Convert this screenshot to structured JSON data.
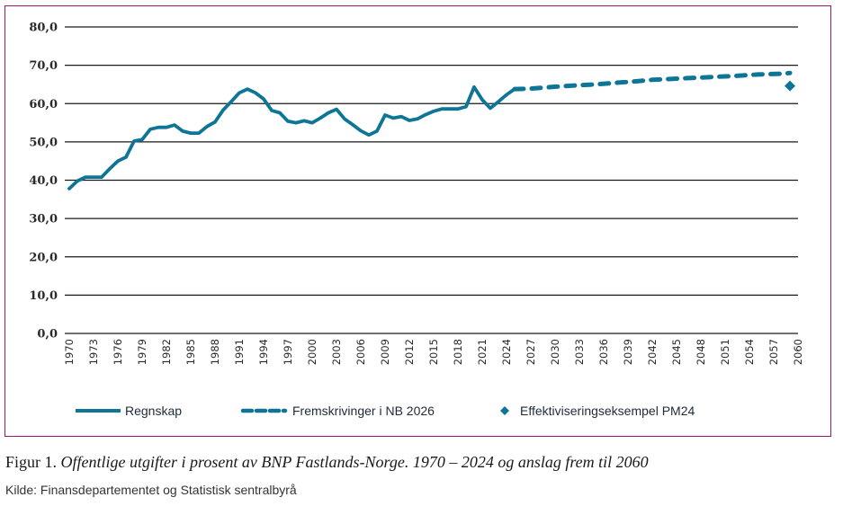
{
  "chart_data": {
    "type": "line",
    "title": "",
    "xlabel": "",
    "ylabel": "",
    "ylim": [
      0,
      80
    ],
    "xlim": [
      1970,
      2060
    ],
    "grid": "horizontal",
    "legend_position": "bottom",
    "y_ticks": [
      "0,0",
      "10,0",
      "20,0",
      "30,0",
      "40,0",
      "50,0",
      "60,0",
      "70,0",
      "80,0"
    ],
    "y_tick_values": [
      0,
      10,
      20,
      30,
      40,
      50,
      60,
      70,
      80
    ],
    "x_ticks": [
      "1970",
      "1973",
      "1976",
      "1979",
      "1982",
      "1985",
      "1988",
      "1991",
      "1994",
      "1997",
      "2000",
      "2003",
      "2006",
      "2009",
      "2012",
      "2015",
      "2018",
      "2021",
      "2024",
      "2027",
      "2030",
      "2033",
      "2036",
      "2039",
      "2042",
      "2045",
      "2048",
      "2051",
      "2054",
      "2057",
      "2060"
    ],
    "series": [
      {
        "name": "Regnskap",
        "style": "solid",
        "color": "#0f7596",
        "x": [
          1970,
          1971,
          1972,
          1973,
          1974,
          1975,
          1976,
          1977,
          1978,
          1979,
          1980,
          1981,
          1982,
          1983,
          1984,
          1985,
          1986,
          1987,
          1988,
          1989,
          1990,
          1991,
          1992,
          1993,
          1994,
          1995,
          1996,
          1997,
          1998,
          1999,
          2000,
          2001,
          2002,
          2003,
          2004,
          2005,
          2006,
          2007,
          2008,
          2009,
          2010,
          2011,
          2012,
          2013,
          2014,
          2015,
          2016,
          2017,
          2018,
          2019,
          2020,
          2021,
          2022,
          2023,
          2024,
          2025
        ],
        "values": [
          37.8,
          39.8,
          40.8,
          40.8,
          40.8,
          43.0,
          45.0,
          46.0,
          50.2,
          50.6,
          53.3,
          53.8,
          53.8,
          54.4,
          52.8,
          52.3,
          52.3,
          54.0,
          55.2,
          58.3,
          60.5,
          62.8,
          63.8,
          62.8,
          61.2,
          58.2,
          57.6,
          55.4,
          55.0,
          55.5,
          55.0,
          56.2,
          57.6,
          58.5,
          56.0,
          54.5,
          52.9,
          51.8,
          52.8,
          57.0,
          56.2,
          56.6,
          55.6,
          56.0,
          57.1,
          58.0,
          58.6,
          58.6,
          58.6,
          59.2,
          64.3,
          61.0,
          58.8,
          60.5,
          62.3,
          63.8
        ]
      },
      {
        "name": "Fremskrivinger i NB 2026",
        "style": "dashed",
        "color": "#0f7596",
        "x": [
          2025,
          2027,
          2030,
          2033,
          2035,
          2038,
          2040,
          2042,
          2045,
          2048,
          2050,
          2052,
          2055,
          2058,
          2059
        ],
        "values": [
          63.8,
          63.9,
          64.4,
          64.8,
          65.0,
          65.5,
          65.8,
          66.2,
          66.5,
          66.8,
          67.0,
          67.2,
          67.6,
          67.8,
          68.0
        ]
      },
      {
        "name": "Effektiviseringseksempel PM24",
        "style": "marker-diamond",
        "color": "#0f7596",
        "x": [
          2059
        ],
        "values": [
          64.6
        ]
      }
    ]
  },
  "caption": {
    "prefix": "Figur 1. ",
    "text": "Offentlige utgifter i prosent av BNP Fastlands-Norge. 1970 – 2024 og anslag frem til 2060"
  },
  "source": "Kilde: Finansdepartementet og Statistisk sentralbyrå",
  "colors": {
    "frame": "#9b1b6a",
    "series": "#0f7596",
    "grid": "#1a1a1a"
  }
}
